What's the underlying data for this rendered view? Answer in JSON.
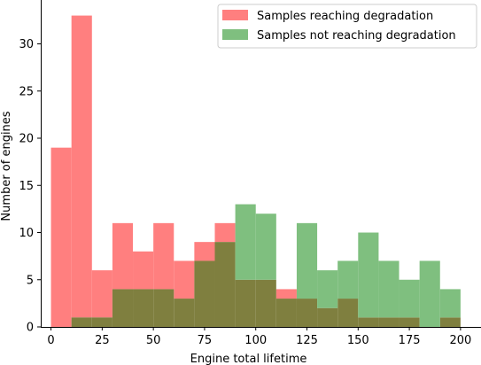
{
  "chart_data": {
    "type": "histogram",
    "xlabel": "Engine total lifetime",
    "ylabel": "Number of engines",
    "xlim": [
      -5,
      210
    ],
    "ylim": [
      0,
      34.65
    ],
    "xticks": [
      0,
      25,
      50,
      75,
      100,
      125,
      150,
      175,
      200
    ],
    "yticks": [
      0,
      5,
      10,
      15,
      20,
      25,
      30
    ],
    "bin_width": 10,
    "grid": false,
    "legend_position": "top-right",
    "overlap_color": "#7f7f3f",
    "series": [
      {
        "name": "Samples reaching degradation",
        "color": "#ff7f7f",
        "bin_starts": [
          0,
          10,
          20,
          30,
          40,
          50,
          60,
          70,
          80,
          90,
          100,
          110,
          120,
          130,
          140,
          150,
          160,
          170,
          180,
          190
        ],
        "values": [
          19,
          33,
          6,
          11,
          8,
          11,
          7,
          9,
          11,
          5,
          5,
          4,
          3,
          2,
          3,
          1,
          1,
          1,
          0,
          1
        ]
      },
      {
        "name": "Samples not reaching degradation",
        "color": "#7fbf7f",
        "bin_starts": [
          0,
          10,
          20,
          30,
          40,
          50,
          60,
          70,
          80,
          90,
          100,
          110,
          120,
          130,
          140,
          150,
          160,
          170,
          180,
          190
        ],
        "values": [
          0,
          1,
          1,
          4,
          4,
          4,
          3,
          7,
          9,
          13,
          12,
          3,
          11,
          6,
          7,
          10,
          7,
          5,
          7,
          4
        ]
      }
    ]
  }
}
